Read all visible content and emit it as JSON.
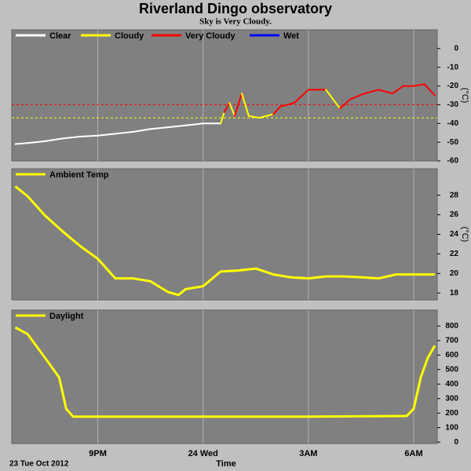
{
  "chart_data": [
    {
      "type": "line",
      "title": "Riverland Dingo observatory",
      "subtitle": "Sky is Very Cloudy.",
      "unit": "(°C)",
      "series": [
        {
          "name": "Clear",
          "color": "#ffffff"
        },
        {
          "name": "Cloudy",
          "color": "#ffff00"
        },
        {
          "name": "Very Cloudy",
          "color": "#ff0000"
        },
        {
          "name": "Wet",
          "color": "#0000ff"
        }
      ],
      "x": [
        18.65,
        19,
        19.5,
        20,
        20.5,
        21,
        21.5,
        22,
        22.5,
        23,
        23.5,
        24,
        24.5,
        24.6,
        24.75,
        24.9,
        25.1,
        25.3,
        25.6,
        26,
        26.2,
        26.6,
        27,
        27.5,
        27.9,
        28.2,
        28.6,
        29,
        29.4,
        29.7,
        30,
        30.3,
        30.6
      ],
      "values": [
        -51,
        -50.5,
        -49.5,
        -48,
        -47,
        -46.5,
        -45.5,
        -44.5,
        -43,
        -42,
        -41,
        -40,
        -40,
        -34,
        -29,
        -36,
        -24,
        -36,
        -37,
        -35,
        -31,
        -29,
        -22,
        -22,
        -32,
        -27,
        -24,
        -22,
        -24,
        -20,
        -20,
        -19,
        -25
      ],
      "conditions": [
        0,
        0,
        0,
        0,
        0,
        0,
        0,
        0,
        0,
        0,
        0,
        0,
        0,
        1,
        2,
        1,
        2,
        1,
        1,
        1,
        2,
        2,
        2,
        2,
        1,
        2,
        2,
        2,
        2,
        2,
        2,
        2,
        2
      ],
      "reference_lines": [
        {
          "value": -30,
          "color": "#ff0000"
        },
        {
          "value": -37,
          "color": "#ffff00"
        }
      ],
      "xlim": [
        18.55,
        30.67
      ],
      "xticks": [
        21,
        24,
        27,
        30
      ],
      "ylim": [
        -60,
        10
      ],
      "yticks": [
        0,
        -10,
        -20,
        -30,
        -40,
        -50,
        -60
      ]
    },
    {
      "type": "line",
      "unit": "(°C)",
      "series": [
        {
          "name": "Ambient Temp",
          "color": "#ffff00",
          "values": [
            28.9,
            27.9,
            25.9,
            24.3,
            22.8,
            21.5,
            19.5,
            19.5,
            19.2,
            18.1,
            17.8,
            18.4,
            18.7,
            20.2,
            20.3,
            20.5,
            19.9,
            19.6,
            19.5,
            19.7,
            19.7,
            19.6,
            19.5,
            19.9,
            19.9,
            19.9
          ]
        }
      ],
      "x": [
        18.65,
        19,
        19.5,
        20,
        20.5,
        21,
        21.5,
        22,
        22.5,
        23,
        23.3,
        23.5,
        24,
        24.5,
        25,
        25.5,
        26,
        26.5,
        27,
        27.5,
        28,
        28.5,
        29,
        29.5,
        30,
        30.6
      ],
      "xlim": [
        18.55,
        30.67
      ],
      "xticks": [
        21,
        24,
        27,
        30
      ],
      "ylim": [
        17.3,
        30.7
      ],
      "yticks": [
        28,
        26,
        24,
        22,
        20,
        18
      ]
    },
    {
      "type": "line",
      "x_label": "Time",
      "start_label": "23 Tue Oct 2012",
      "series": [
        {
          "name": "Daylight",
          "color": "#ffff00",
          "values": [
            790,
            745,
            580,
            445,
            230,
            175,
            175,
            175,
            175,
            175,
            175,
            175,
            175,
            175,
            180,
            230,
            445,
            580,
            665
          ]
        }
      ],
      "x": [
        18.65,
        19,
        19.5,
        19.9,
        20.1,
        20.3,
        20.5,
        21,
        22,
        23,
        24,
        25,
        26,
        27,
        29.8,
        30,
        30.2,
        30.4,
        30.6
      ],
      "xlim": [
        18.55,
        30.67
      ],
      "xticks": [
        {
          "value": 21,
          "label": "9PM"
        },
        {
          "value": 24,
          "label": "24 Wed"
        },
        {
          "value": 27,
          "label": "3AM"
        },
        {
          "value": 30,
          "label": "6AM"
        }
      ],
      "ylim": [
        -10,
        910
      ],
      "yticks": [
        0,
        100,
        200,
        300,
        400,
        500,
        600,
        700,
        800
      ]
    }
  ]
}
